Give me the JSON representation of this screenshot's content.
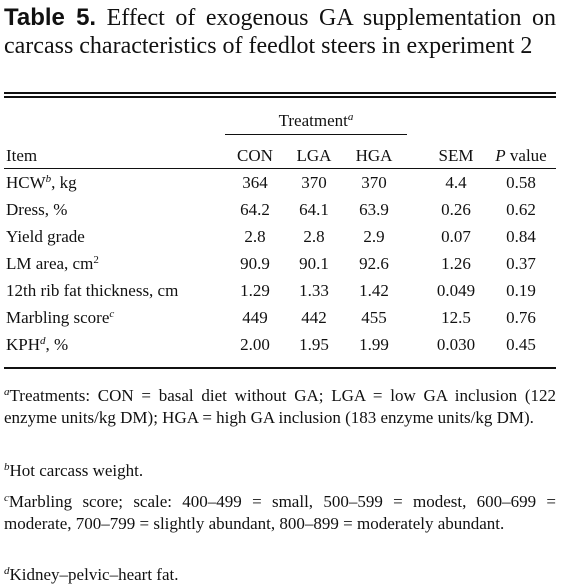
{
  "caption": {
    "label": "Table 5.",
    "text": "Effect of exogenous GA supplementation on carcass characteristics of feedlot steers in experiment 2"
  },
  "header": {
    "treatment": "Treatment",
    "treatment_sup": "a",
    "item": "Item",
    "con": "CON",
    "lga": "LGA",
    "hga": "HGA",
    "sem": "SEM",
    "p_italic": "P",
    "p_rest": "value"
  },
  "rows": [
    {
      "item": "HCW",
      "sup": "b",
      "suffix": ", kg",
      "con": "364",
      "lga": "370",
      "hga": "370",
      "sem": "4.4",
      "p": "0.58"
    },
    {
      "item": "Dress, %",
      "sup": "",
      "suffix": "",
      "con": "64.2",
      "lga": "64.1",
      "hga": "63.9",
      "sem": "0.26",
      "p": "0.62"
    },
    {
      "item": "Yield grade",
      "sup": "",
      "suffix": "",
      "con": "2.8",
      "lga": "2.8",
      "hga": "2.9",
      "sem": "0.07",
      "p": "0.84"
    },
    {
      "item": "LM area, cm",
      "sup": "2",
      "suffix": "",
      "con": "90.9",
      "lga": "90.1",
      "hga": "92.6",
      "sem": "1.26",
      "p": "0.37"
    },
    {
      "item": "12th rib fat thickness, cm",
      "sup": "",
      "suffix": "",
      "con": "1.29",
      "lga": "1.33",
      "hga": "1.42",
      "sem": "0.049",
      "p": "0.19"
    },
    {
      "item": "Marbling score",
      "sup": "c",
      "suffix": "",
      "con": "449",
      "lga": "442",
      "hga": "455",
      "sem": "12.5",
      "p": "0.76"
    },
    {
      "item": "KPH",
      "sup": "d",
      "suffix": ", %",
      "con": "2.00",
      "lga": "1.95",
      "hga": "1.99",
      "sem": "0.030",
      "p": "0.45"
    }
  ],
  "footnotes": [
    {
      "mark": "a",
      "text": "Treatments: CON = basal diet without GA; LGA = low GA inclusion (122 enzyme units/kg DM); HGA = high GA inclusion (183 enzyme units/kg DM)."
    },
    {
      "mark": "b",
      "text": "Hot carcass weight."
    },
    {
      "mark": "c",
      "text": "Marbling score; scale: 400–499 = small, 500–599 = modest, 600–699 = moderate, 700–799 = slightly abundant, 800–899 = moderately abundant."
    },
    {
      "mark": "d",
      "text": "Kidney–pelvic–heart fat."
    }
  ]
}
